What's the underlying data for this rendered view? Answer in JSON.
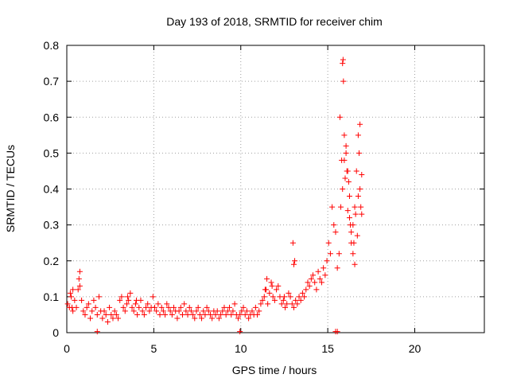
{
  "chart_data": {
    "type": "scatter",
    "title": "Day 193 of 2018, SRMTID for receiver chim",
    "xlabel": "GPS time / hours",
    "ylabel": "SRMTID / TECUs",
    "xlim": [
      0,
      24
    ],
    "ylim": [
      0,
      0.8
    ],
    "xticks": [
      0,
      5,
      10,
      15,
      20
    ],
    "xtick_labels": [
      "0",
      "5",
      "10",
      "15",
      "20"
    ],
    "yticks": [
      0,
      0.1,
      0.2,
      0.3,
      0.4,
      0.5,
      0.6,
      0.7,
      0.8
    ],
    "ytick_labels": [
      "0",
      "0.1",
      "0.2",
      "0.3",
      "0.4",
      "0.5",
      "0.6",
      "0.7",
      "0.8"
    ],
    "grid": true,
    "marker": "plus",
    "color": "#ff0000",
    "series": [
      {
        "name": "SRMTID",
        "x": [
          0.05,
          0.15,
          0.25,
          0.35,
          0.45,
          0.55,
          0.65,
          0.75,
          0.85,
          0.95,
          1.05,
          1.15,
          1.25,
          1.35,
          1.45,
          1.55,
          1.65,
          1.75,
          1.85,
          1.95,
          2.05,
          2.15,
          2.25,
          2.35,
          2.45,
          2.55,
          2.65,
          2.75,
          2.85,
          2.95,
          3.05,
          3.15,
          3.25,
          3.35,
          3.45,
          3.55,
          3.65,
          3.75,
          3.85,
          3.95,
          4.05,
          4.15,
          4.25,
          4.35,
          4.45,
          4.55,
          4.65,
          4.75,
          4.85,
          4.95,
          5.05,
          5.15,
          5.25,
          5.35,
          5.45,
          5.55,
          5.65,
          5.75,
          5.85,
          5.95,
          6.05,
          6.15,
          6.25,
          6.35,
          6.45,
          6.55,
          6.65,
          6.75,
          6.85,
          6.95,
          7.05,
          7.15,
          7.25,
          7.35,
          7.45,
          7.55,
          7.65,
          7.75,
          7.85,
          7.95,
          8.05,
          8.15,
          8.25,
          8.35,
          8.45,
          8.55,
          8.65,
          8.75,
          8.85,
          8.95,
          9.05,
          9.15,
          9.25,
          9.35,
          9.45,
          9.55,
          9.65,
          9.75,
          9.85,
          9.95,
          10.05,
          10.15,
          10.25,
          10.35,
          10.45,
          10.55,
          10.65,
          10.75,
          10.85,
          10.95,
          11.05,
          11.15,
          11.25,
          11.35,
          11.45,
          11.55,
          11.65,
          11.75,
          11.85,
          11.95,
          12.05,
          12.15,
          12.25,
          12.35,
          12.45,
          12.55,
          12.65,
          12.75,
          12.85,
          12.95,
          13.05,
          13.15,
          13.25,
          13.35,
          13.45,
          13.55,
          13.65,
          13.75,
          13.85,
          13.95,
          14.05,
          14.15,
          14.25,
          14.35,
          14.45,
          14.55,
          14.65,
          14.75,
          14.85,
          14.95,
          15.05,
          15.15,
          15.25,
          15.35,
          15.45,
          15.55,
          15.65,
          15.75,
          15.85,
          15.95,
          16.05,
          16.15,
          16.25,
          16.35,
          16.45,
          16.55,
          16.65,
          16.75,
          16.85,
          16.95,
          1.75,
          9.95,
          15.45,
          15.55,
          15.85,
          15.9,
          15.95,
          15.88,
          16.05,
          16.1,
          16.2,
          16.25,
          16.35,
          16.5,
          16.6,
          16.75,
          16.8,
          16.9,
          13.0,
          13.1,
          12.5,
          11.8,
          15.7,
          15.8,
          16.0,
          16.15,
          16.3,
          16.45,
          16.55,
          16.7,
          16.85,
          16.95,
          0.75,
          0.7,
          0.2,
          0.3,
          0.35,
          3.5,
          4.0,
          11.4,
          11.5,
          13.05
        ],
        "y": [
          0.08,
          0.07,
          0.1,
          0.06,
          0.09,
          0.07,
          0.12,
          0.13,
          0.09,
          0.06,
          0.05,
          0.07,
          0.08,
          0.04,
          0.06,
          0.09,
          0.07,
          0.05,
          0.1,
          0.06,
          0.04,
          0.06,
          0.05,
          0.03,
          0.07,
          0.05,
          0.04,
          0.06,
          0.05,
          0.04,
          0.09,
          0.1,
          0.07,
          0.06,
          0.08,
          0.09,
          0.11,
          0.07,
          0.06,
          0.08,
          0.05,
          0.07,
          0.09,
          0.06,
          0.05,
          0.07,
          0.08,
          0.06,
          0.07,
          0.1,
          0.07,
          0.06,
          0.08,
          0.05,
          0.07,
          0.06,
          0.05,
          0.08,
          0.07,
          0.06,
          0.05,
          0.07,
          0.06,
          0.04,
          0.06,
          0.07,
          0.05,
          0.08,
          0.06,
          0.05,
          0.07,
          0.06,
          0.05,
          0.04,
          0.06,
          0.07,
          0.05,
          0.04,
          0.06,
          0.05,
          0.07,
          0.06,
          0.05,
          0.04,
          0.06,
          0.05,
          0.06,
          0.04,
          0.05,
          0.06,
          0.07,
          0.05,
          0.06,
          0.07,
          0.05,
          0.06,
          0.08,
          0.05,
          0.04,
          0.05,
          0.06,
          0.07,
          0.05,
          0.06,
          0.04,
          0.05,
          0.06,
          0.05,
          0.07,
          0.05,
          0.06,
          0.08,
          0.09,
          0.1,
          0.12,
          0.08,
          0.11,
          0.14,
          0.1,
          0.09,
          0.12,
          0.13,
          0.1,
          0.08,
          0.09,
          0.07,
          0.08,
          0.11,
          0.1,
          0.08,
          0.07,
          0.09,
          0.08,
          0.1,
          0.09,
          0.11,
          0.1,
          0.12,
          0.14,
          0.13,
          0.15,
          0.16,
          0.14,
          0.12,
          0.17,
          0.15,
          0.14,
          0.18,
          0.16,
          0.2,
          0.25,
          0.22,
          0.35,
          0.3,
          0.28,
          0.18,
          0.22,
          0.35,
          0.4,
          0.48,
          0.52,
          0.45,
          0.32,
          0.25,
          0.3,
          0.35,
          0.45,
          0.38,
          0.4,
          0.33,
          0.003,
          0.003,
          0.003,
          0.003,
          0.75,
          0.7,
          0.55,
          0.76,
          0.5,
          0.45,
          0.42,
          0.38,
          0.28,
          0.25,
          0.33,
          0.55,
          0.5,
          0.35,
          0.25,
          0.2,
          0.1,
          0.13,
          0.6,
          0.48,
          0.43,
          0.34,
          0.3,
          0.22,
          0.19,
          0.27,
          0.58,
          0.44,
          0.17,
          0.15,
          0.11,
          0.07,
          0.12,
          0.1,
          0.09,
          0.12,
          0.15,
          0.19
        ]
      }
    ]
  }
}
